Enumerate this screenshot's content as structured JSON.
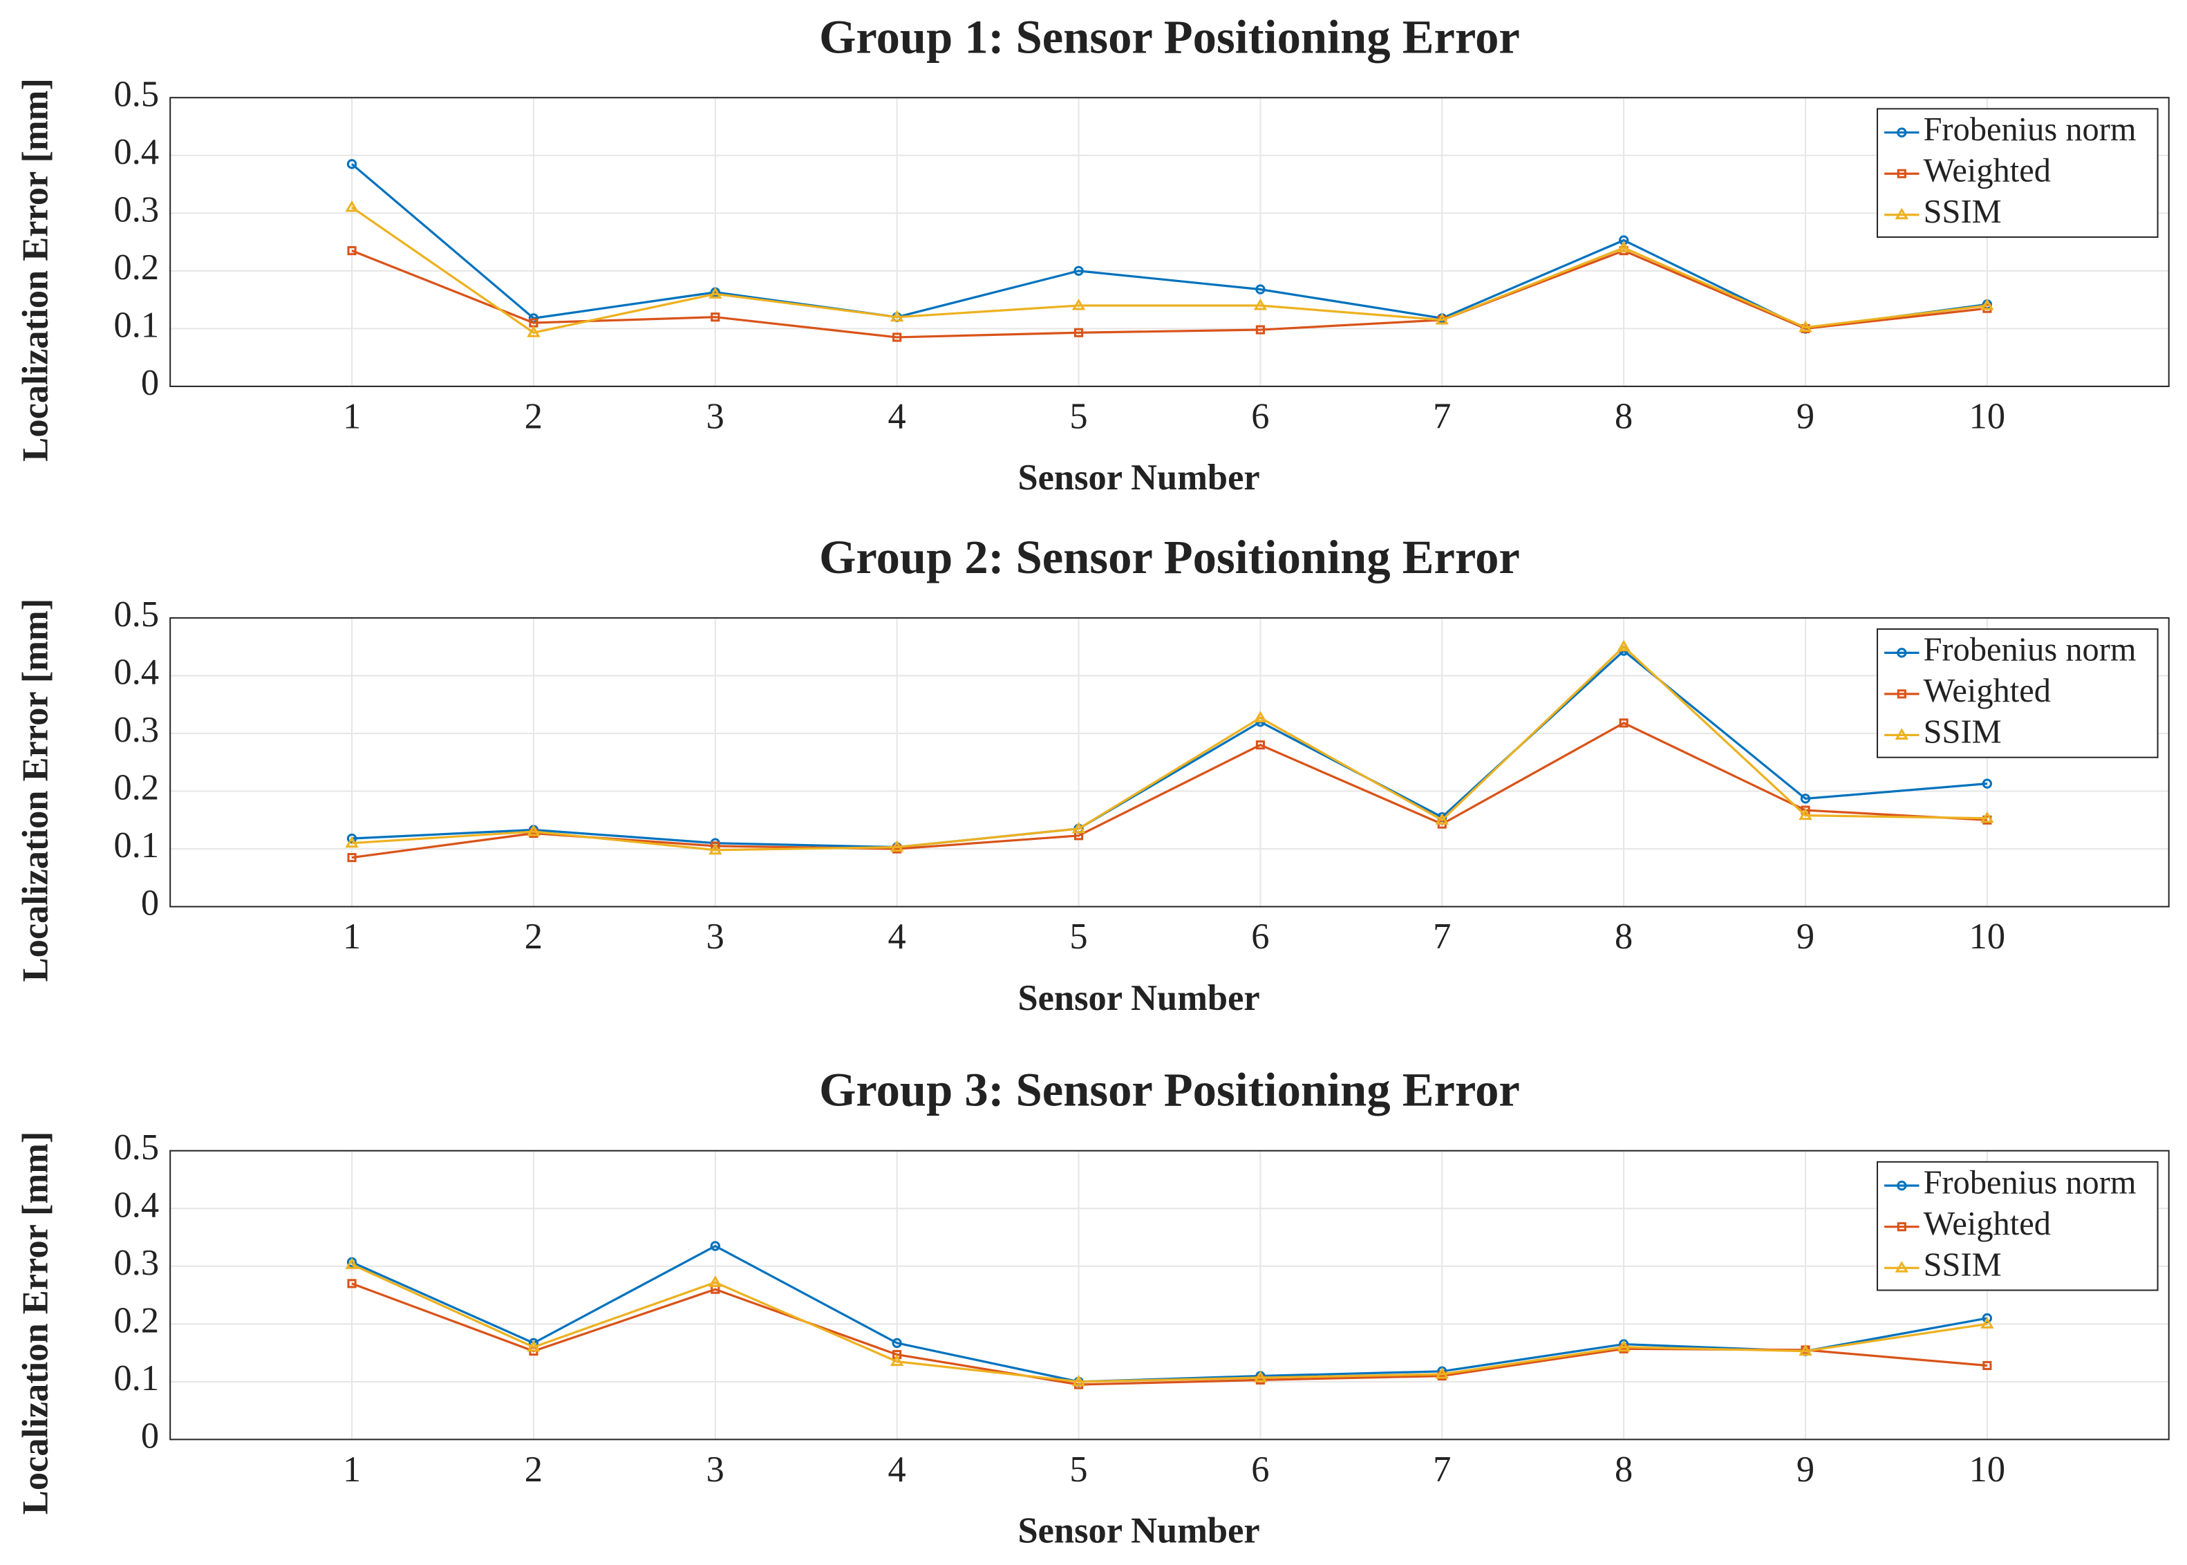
{
  "chart_data": [
    {
      "type": "line",
      "title": "Group 1: Sensor Positioning Error",
      "xlabel": "Sensor Number",
      "ylabel": "Localization Error [mm]",
      "x": [
        1,
        2,
        3,
        4,
        5,
        6,
        7,
        8,
        9,
        10
      ],
      "series": [
        {
          "name": "Frobenius norm",
          "color": "#0072bd",
          "marker": "circle",
          "values": [
            0.385,
            0.118,
            0.163,
            0.12,
            0.2,
            0.168,
            0.118,
            0.253,
            0.1,
            0.142
          ]
        },
        {
          "name": "Weighted",
          "color": "#d95319",
          "marker": "square",
          "values": [
            0.235,
            0.11,
            0.12,
            0.085,
            0.093,
            0.098,
            0.115,
            0.235,
            0.1,
            0.135
          ]
        },
        {
          "name": "SSIM",
          "color": "#edb120",
          "marker": "triangle",
          "values": [
            0.31,
            0.093,
            0.16,
            0.12,
            0.14,
            0.14,
            0.115,
            0.24,
            0.102,
            0.14
          ]
        }
      ],
      "xlim": [
        0,
        11
      ],
      "xticks": [
        1,
        2,
        3,
        4,
        5,
        6,
        7,
        8,
        9,
        10
      ],
      "ylim": [
        0,
        0.5
      ],
      "yticks": [
        0,
        0.1,
        0.2,
        0.3,
        0.4,
        0.5
      ],
      "grid": true,
      "legend": "upper right"
    },
    {
      "type": "line",
      "title": "Group 2: Sensor Positioning Error",
      "xlabel": "Sensor Number",
      "ylabel": "Localization Error [mm]",
      "x": [
        1,
        2,
        3,
        4,
        5,
        6,
        7,
        8,
        9,
        10
      ],
      "series": [
        {
          "name": "Frobenius norm",
          "color": "#0072bd",
          "marker": "circle",
          "values": [
            0.118,
            0.133,
            0.11,
            0.103,
            0.135,
            0.32,
            0.155,
            0.443,
            0.187,
            0.213
          ]
        },
        {
          "name": "Weighted",
          "color": "#d95319",
          "marker": "square",
          "values": [
            0.085,
            0.127,
            0.105,
            0.1,
            0.123,
            0.28,
            0.143,
            0.318,
            0.167,
            0.15
          ]
        },
        {
          "name": "SSIM",
          "color": "#edb120",
          "marker": "triangle",
          "values": [
            0.11,
            0.13,
            0.098,
            0.103,
            0.135,
            0.327,
            0.15,
            0.45,
            0.158,
            0.153
          ]
        }
      ],
      "xlim": [
        0,
        11
      ],
      "xticks": [
        1,
        2,
        3,
        4,
        5,
        6,
        7,
        8,
        9,
        10
      ],
      "ylim": [
        0,
        0.5
      ],
      "yticks": [
        0,
        0.1,
        0.2,
        0.3,
        0.4,
        0.5
      ],
      "grid": true,
      "legend": "upper right"
    },
    {
      "type": "line",
      "title": "Group 3: Sensor Positioning Error",
      "xlabel": "Sensor Number",
      "ylabel": "Localization Error [mm]",
      "x": [
        1,
        2,
        3,
        4,
        5,
        6,
        7,
        8,
        9,
        10
      ],
      "series": [
        {
          "name": "Frobenius norm",
          "color": "#0072bd",
          "marker": "circle",
          "values": [
            0.307,
            0.167,
            0.335,
            0.167,
            0.1,
            0.11,
            0.118,
            0.165,
            0.153,
            0.21
          ]
        },
        {
          "name": "Weighted",
          "color": "#d95319",
          "marker": "square",
          "values": [
            0.27,
            0.153,
            0.26,
            0.147,
            0.095,
            0.103,
            0.11,
            0.157,
            0.155,
            0.128
          ]
        },
        {
          "name": "SSIM",
          "color": "#edb120",
          "marker": "triangle",
          "values": [
            0.303,
            0.16,
            0.272,
            0.135,
            0.1,
            0.107,
            0.113,
            0.16,
            0.153,
            0.2
          ]
        }
      ],
      "xlim": [
        0,
        11
      ],
      "xticks": [
        1,
        2,
        3,
        4,
        5,
        6,
        7,
        8,
        9,
        10
      ],
      "ylim": [
        0,
        0.5
      ],
      "yticks": [
        0,
        0.1,
        0.2,
        0.3,
        0.4,
        0.5
      ],
      "grid": true,
      "legend": "upper right"
    }
  ]
}
